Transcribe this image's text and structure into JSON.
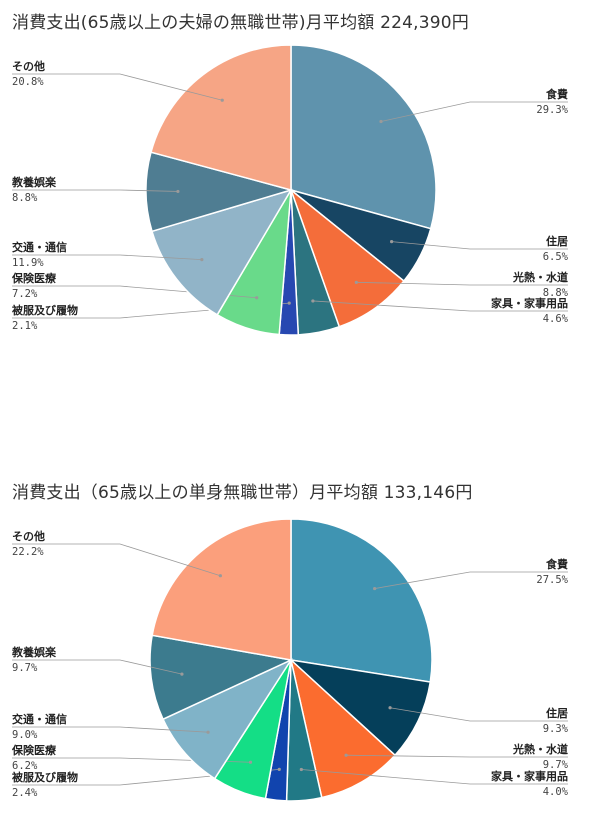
{
  "chart_data": [
    {
      "type": "pie",
      "title": "消費支出(65歳以上の夫婦の無職世帯)月平均額 224,390円",
      "slices": [
        {
          "label": "食費",
          "value": 29.3,
          "display": "29.3%",
          "color": "#5f93ad"
        },
        {
          "label": "住居",
          "value": 6.5,
          "display": "6.5%",
          "color": "#174563"
        },
        {
          "label": "光熱・水道",
          "value": 8.8,
          "display": "8.8%",
          "color": "#f46d3a"
        },
        {
          "label": "家具・家事用品",
          "value": 4.6,
          "display": "4.6%",
          "color": "#2c7480"
        },
        {
          "label": "被服及び履物",
          "value": 2.1,
          "display": "2.1%",
          "color": "#2748b1"
        },
        {
          "label": "保険医療",
          "value": 7.2,
          "display": "7.2%",
          "color": "#69da8a"
        },
        {
          "label": "交通・通信",
          "value": 11.9,
          "display": "11.9%",
          "color": "#91b4c8"
        },
        {
          "label": "教養娯楽",
          "value": 8.8,
          "display": "8.8%",
          "color": "#4f7d92"
        },
        {
          "label": "その他",
          "value": 20.8,
          "display": "20.8%",
          "color": "#f6a585"
        }
      ]
    },
    {
      "type": "pie",
      "title": "消費支出（65歳以上の単身無職世帯）月平均額 133,146円",
      "slices": [
        {
          "label": "食費",
          "value": 27.5,
          "display": "27.5%",
          "color": "#3f94b2"
        },
        {
          "label": "住居",
          "value": 9.3,
          "display": "9.3%",
          "color": "#053f5a"
        },
        {
          "label": "光熱・水道",
          "value": 9.7,
          "display": "9.7%",
          "color": "#fb6c2f"
        },
        {
          "label": "家具・家事用品",
          "value": 4.0,
          "display": "4.0%",
          "color": "#217986"
        },
        {
          "label": "被服及び履物",
          "value": 2.4,
          "display": "2.4%",
          "color": "#1144ae"
        },
        {
          "label": "保険医療",
          "value": 6.2,
          "display": "6.2%",
          "color": "#14de86"
        },
        {
          "label": "交通・通信",
          "value": 9.0,
          "display": "9.0%",
          "color": "#80b3c8"
        },
        {
          "label": "教養娯楽",
          "value": 9.7,
          "display": "9.7%",
          "color": "#3c7b8e"
        },
        {
          "label": "その他",
          "value": 22.2,
          "display": "22.2%",
          "color": "#fb9f7c"
        }
      ]
    }
  ]
}
